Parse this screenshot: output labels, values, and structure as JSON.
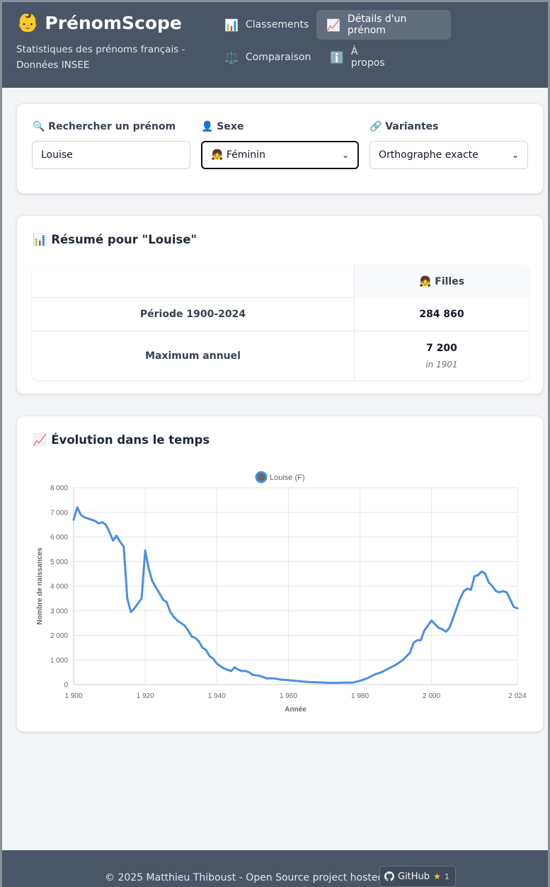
{
  "app": {
    "name": "PrénomScope",
    "logo": "👶",
    "tagline": "Statistiques des prénoms français - Données INSEE"
  },
  "nav": [
    {
      "icon": "📊",
      "label": "Classements",
      "active": false
    },
    {
      "icon": "📈",
      "label": "Détails d'un prénom",
      "active": true
    },
    {
      "icon": "⚖️",
      "label": "Comparaison",
      "active": false
    },
    {
      "icon": "ℹ️",
      "label": "À propos",
      "active": false
    }
  ],
  "search": {
    "name_label": "🔍 Rechercher un prénom",
    "name_value": "Louise",
    "sex_label": "👤 Sexe",
    "sex_value": "👧 Féminin",
    "variants_label": "🔗 Variantes",
    "variants_value": "Orthographe exacte"
  },
  "summary": {
    "title": "📊 Résumé pour \"Louise\"",
    "column": "👧 Filles",
    "rows": [
      {
        "label": "Période 1900-2024",
        "value": "284 860",
        "sub": ""
      },
      {
        "label": "Maximum annuel",
        "value": "7 200",
        "sub": "in 1901"
      }
    ]
  },
  "chart": {
    "title": "📈 Évolution dans le temps",
    "series_color": "#4a90e2"
  },
  "chart_data": {
    "type": "line",
    "xlabel": "Année",
    "ylabel": "Nombre de naissances",
    "xlim": [
      1900,
      2024
    ],
    "ylim": [
      0,
      8000
    ],
    "x_ticks": [
      "1 900",
      "1 920",
      "1 940",
      "1 960",
      "1 980",
      "2 000",
      "2 024"
    ],
    "y_ticks": [
      "0",
      "1 000",
      "2 000",
      "3 000",
      "4 000",
      "5 000",
      "6 000",
      "7 000",
      "8 000"
    ],
    "legend_position": "top-center",
    "grid": true,
    "series": [
      {
        "name": "Louise (F)",
        "x": [
          1900,
          1901,
          1902,
          1903,
          1904,
          1905,
          1906,
          1907,
          1908,
          1909,
          1910,
          1911,
          1912,
          1913,
          1914,
          1915,
          1916,
          1917,
          1918,
          1919,
          1920,
          1921,
          1922,
          1923,
          1924,
          1925,
          1926,
          1927,
          1928,
          1929,
          1930,
          1931,
          1932,
          1933,
          1934,
          1935,
          1936,
          1937,
          1938,
          1939,
          1940,
          1941,
          1942,
          1943,
          1944,
          1945,
          1946,
          1947,
          1948,
          1949,
          1950,
          1952,
          1954,
          1956,
          1958,
          1960,
          1962,
          1964,
          1966,
          1968,
          1970,
          1972,
          1974,
          1976,
          1978,
          1980,
          1982,
          1984,
          1986,
          1988,
          1990,
          1992,
          1994,
          1995,
          1996,
          1997,
          1998,
          1999,
          2000,
          2001,
          2002,
          2003,
          2004,
          2005,
          2006,
          2007,
          2008,
          2009,
          2010,
          2011,
          2012,
          2013,
          2014,
          2015,
          2016,
          2017,
          2018,
          2019,
          2020,
          2021,
          2022,
          2023,
          2024
        ],
        "values": [
          6700,
          7200,
          6900,
          6800,
          6750,
          6700,
          6650,
          6550,
          6600,
          6500,
          6200,
          5850,
          6050,
          5800,
          5600,
          3500,
          2950,
          3100,
          3300,
          3500,
          5450,
          4700,
          4200,
          3950,
          3700,
          3450,
          3350,
          2950,
          2750,
          2600,
          2500,
          2400,
          2200,
          1950,
          1900,
          1750,
          1500,
          1400,
          1150,
          1050,
          850,
          750,
          650,
          600,
          550,
          700,
          600,
          550,
          550,
          500,
          400,
          350,
          250,
          250,
          200,
          180,
          150,
          120,
          100,
          90,
          80,
          70,
          70,
          80,
          80,
          150,
          250,
          400,
          500,
          650,
          800,
          1000,
          1300,
          1700,
          1800,
          1800,
          2200,
          2400,
          2600,
          2450,
          2300,
          2250,
          2150,
          2300,
          2700,
          3100,
          3500,
          3800,
          3900,
          3850,
          4400,
          4450,
          4600,
          4500,
          4150,
          4000,
          3800,
          3750,
          3800,
          3750,
          3450,
          3150,
          3100
        ]
      }
    ]
  },
  "footer": {
    "text": "© 2025 Matthieu Thiboust - Open Source project hosted on",
    "github_label": "GitHub",
    "github_stars": "1"
  }
}
